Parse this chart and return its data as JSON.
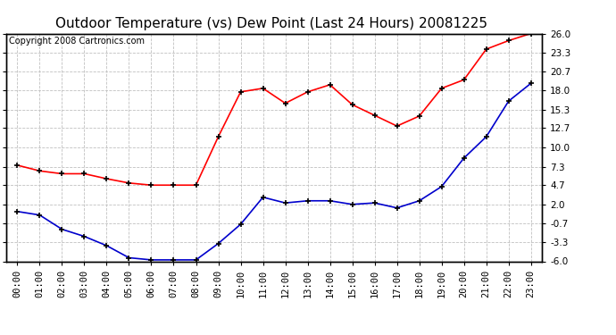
{
  "title": "Outdoor Temperature (vs) Dew Point (Last 24 Hours) 20081225",
  "copyright_text": "Copyright 2008 Cartronics.com",
  "hours": [
    "00:00",
    "01:00",
    "02:00",
    "03:00",
    "04:00",
    "05:00",
    "06:00",
    "07:00",
    "08:00",
    "09:00",
    "10:00",
    "11:00",
    "12:00",
    "13:00",
    "14:00",
    "15:00",
    "16:00",
    "17:00",
    "18:00",
    "19:00",
    "20:00",
    "21:00",
    "22:00",
    "23:00"
  ],
  "temp_red": [
    7.5,
    6.7,
    6.3,
    6.3,
    5.6,
    5.0,
    4.7,
    4.7,
    4.7,
    11.5,
    17.8,
    18.3,
    16.2,
    17.8,
    18.8,
    16.0,
    14.5,
    13.0,
    14.4,
    18.3,
    19.5,
    23.8,
    25.0,
    26.0
  ],
  "temp_blue": [
    1.0,
    0.5,
    -1.5,
    -2.5,
    -3.8,
    -5.5,
    -5.8,
    -5.8,
    -5.8,
    -3.5,
    -0.8,
    3.0,
    2.2,
    2.5,
    2.5,
    2.0,
    2.2,
    1.5,
    2.5,
    4.5,
    8.5,
    11.5,
    16.5,
    19.0
  ],
  "ylim": [
    -6.0,
    26.0
  ],
  "yticks": [
    26.0,
    23.3,
    20.7,
    18.0,
    15.3,
    12.7,
    10.0,
    7.3,
    4.7,
    2.0,
    -0.7,
    -3.3,
    -6.0
  ],
  "background_color": "#ffffff",
  "plot_bg_color": "#ffffff",
  "grid_color": "#c0c0c0",
  "red_color": "#ff0000",
  "blue_color": "#0000cc",
  "title_fontsize": 11,
  "tick_fontsize": 7.5,
  "copyright_fontsize": 7
}
